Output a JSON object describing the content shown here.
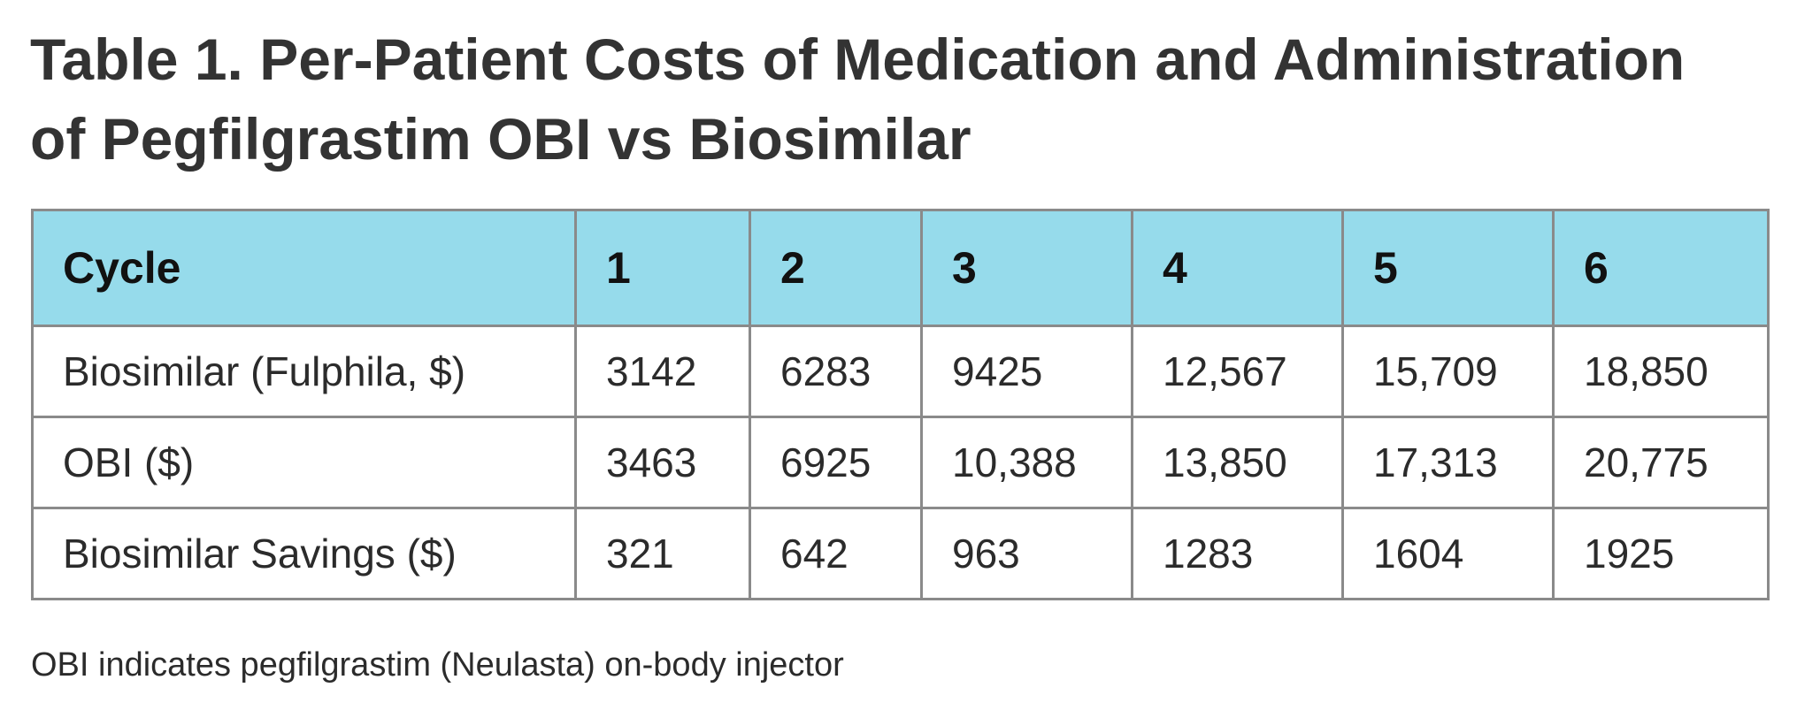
{
  "title": {
    "line1": "Table 1. Per-Patient Costs of Medication and Administration",
    "line2": "of Pegfilgrastim OBI vs Biosimilar"
  },
  "table": {
    "headers": [
      "Cycle",
      "1",
      "2",
      "3",
      "4",
      "5",
      "6"
    ],
    "rows": [
      [
        "Biosimilar (Fulphila, $)",
        "3142",
        "6283",
        "9425",
        "12,567",
        "15,709",
        "18,850"
      ],
      [
        "OBI ($)",
        "3463",
        "6925",
        "10,388",
        "13,850",
        "17,313",
        "20,775"
      ],
      [
        "Biosimilar Savings ($)",
        "321",
        "642",
        "963",
        "1283",
        "1604",
        "1925"
      ]
    ]
  },
  "footnote": "OBI indicates pegfilgrastim (Neulasta) on-body injector",
  "colors": {
    "header_background": "#96dbeb",
    "border": "#8a8a8a",
    "text": "#2b2b2b"
  }
}
